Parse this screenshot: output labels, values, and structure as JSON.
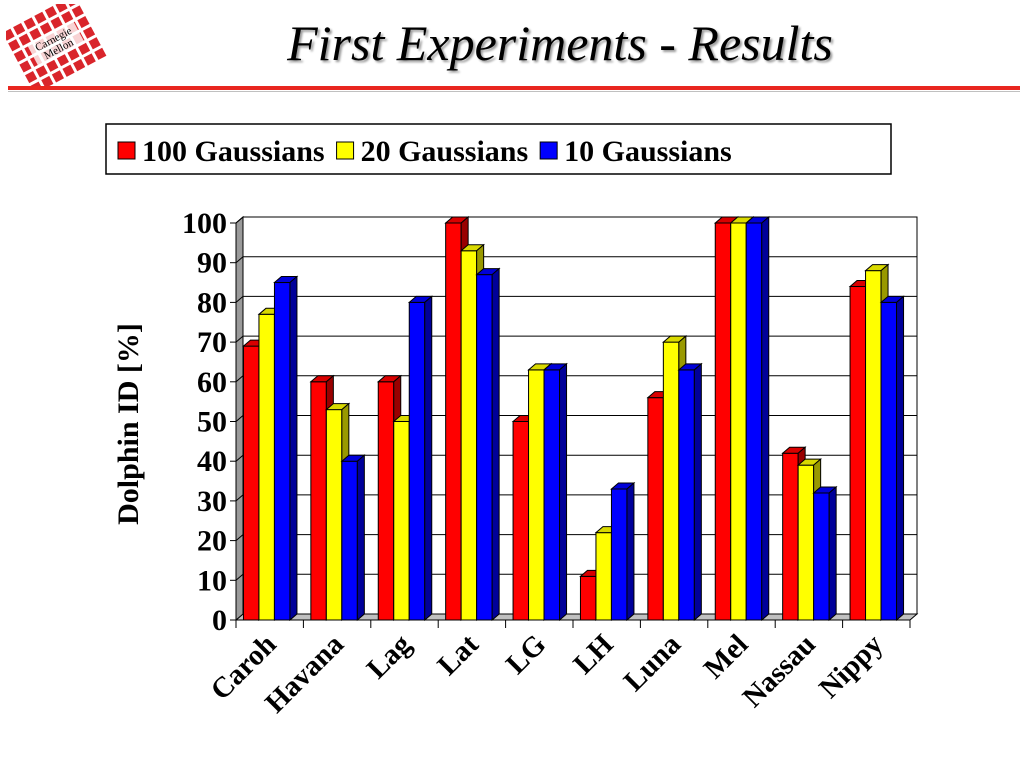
{
  "header": {
    "title": "First Experiments - Results",
    "logo_text_line1": "Carnegie",
    "logo_text_line2": "Mellon"
  },
  "colors": {
    "rule": "#e8261f",
    "series": [
      "#ff0000",
      "#ffff00",
      "#0000ff"
    ]
  },
  "chart_data": {
    "type": "bar",
    "title": "",
    "xlabel": "",
    "ylabel": "Dolphin ID [%]",
    "ylim": [
      0,
      100
    ],
    "yticks": [
      0,
      10,
      20,
      30,
      40,
      50,
      60,
      70,
      80,
      90,
      100
    ],
    "grid": true,
    "legend_position": "top",
    "categories": [
      "Caroh",
      "Havana",
      "Lag",
      "Lat",
      "LG",
      "LH",
      "Luna",
      "Mel",
      "Nassau",
      "Nippy"
    ],
    "series": [
      {
        "name": "100 Gaussians",
        "values": [
          69,
          60,
          60,
          100,
          50,
          11,
          56,
          100,
          42,
          84
        ]
      },
      {
        "name": "20 Gaussians",
        "values": [
          77,
          53,
          50,
          93,
          63,
          22,
          70,
          100,
          39,
          88
        ]
      },
      {
        "name": "10 Gaussians",
        "values": [
          85,
          40,
          80,
          87,
          63,
          33,
          63,
          100,
          32,
          80
        ]
      }
    ]
  }
}
